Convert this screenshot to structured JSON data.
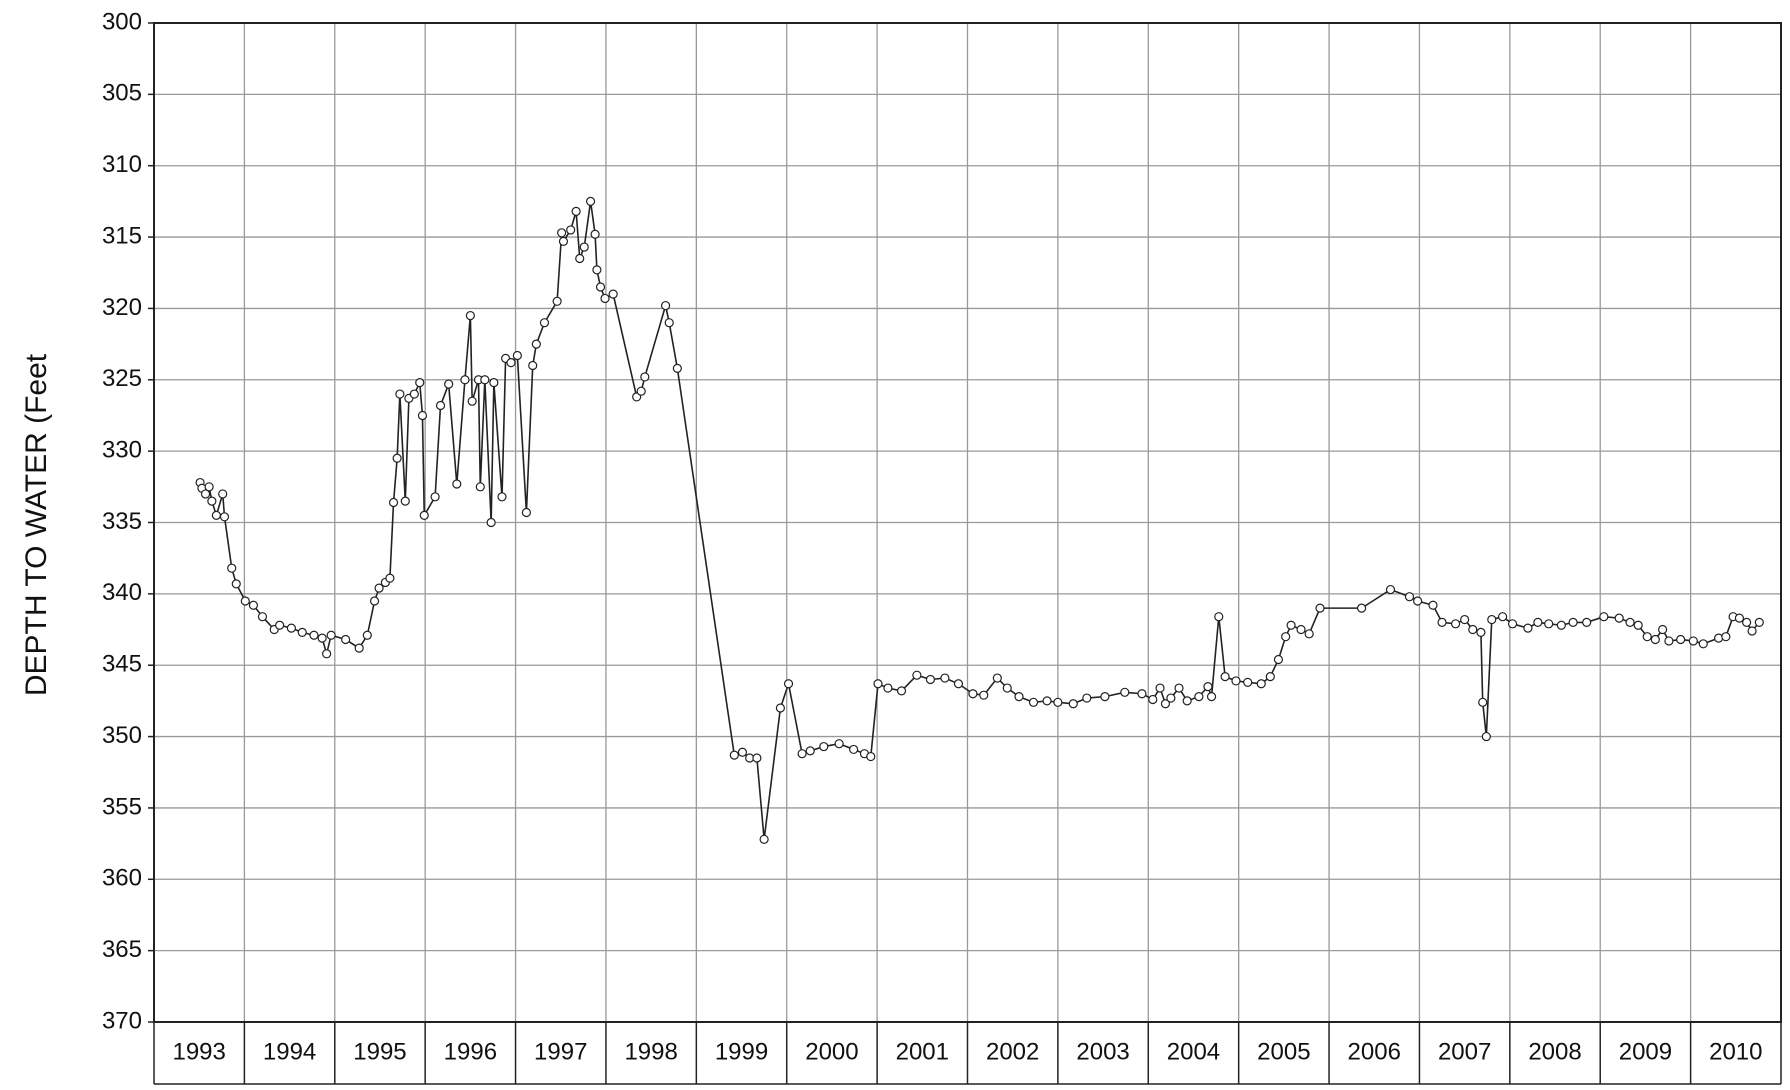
{
  "chart_data": {
    "type": "line",
    "ylabel": "DEPTH TO WATER (Feet",
    "categories": [
      "1993",
      "1994",
      "1995",
      "1996",
      "1997",
      "1998",
      "1999",
      "2000",
      "2001",
      "2002",
      "2003",
      "2004",
      "2005",
      "2006",
      "2007",
      "2008",
      "2009",
      "2010"
    ],
    "xlim": [
      1993,
      2011
    ],
    "ylim": [
      300,
      370
    ],
    "y_inverted": true,
    "yticks": [
      300,
      305,
      310,
      315,
      320,
      325,
      330,
      335,
      340,
      345,
      350,
      355,
      360,
      365,
      370
    ],
    "grid": true,
    "markers": true,
    "x": [
      1993.51,
      1993.53,
      1993.57,
      1993.61,
      1993.64,
      1993.69,
      1993.76,
      1993.78,
      1993.86,
      1993.91,
      1994.01,
      1994.1,
      1994.2,
      1994.33,
      1994.39,
      1994.52,
      1994.64,
      1994.77,
      1994.86,
      1994.91,
      1994.96,
      1995.12,
      1995.27,
      1995.36,
      1995.44,
      1995.49,
      1995.56,
      1995.61,
      1995.65,
      1995.69,
      1995.72,
      1995.78,
      1995.82,
      1995.88,
      1995.94,
      1995.97,
      1995.99,
      1996.11,
      1996.17,
      1996.26,
      1996.35,
      1996.44,
      1996.5,
      1996.52,
      1996.59,
      1996.61,
      1996.66,
      1996.73,
      1996.76,
      1996.85,
      1996.89,
      1996.95,
      1997.02,
      1997.12,
      1997.19,
      1997.23,
      1997.32,
      1997.46,
      1997.51,
      1997.53,
      1997.61,
      1997.67,
      1997.71,
      1997.76,
      1997.83,
      1997.88,
      1997.9,
      1997.94,
      1997.99,
      1998.08,
      1998.34,
      1998.39,
      1998.43,
      1998.66,
      1998.7,
      1998.79,
      1999.42,
      1999.51,
      1999.59,
      1999.67,
      1999.75,
      1999.93,
      2000.02,
      2000.17,
      2000.26,
      2000.41,
      2000.58,
      2000.74,
      2000.86,
      2000.93,
      2001.01,
      2001.12,
      2001.27,
      2001.44,
      2001.59,
      2001.75,
      2001.9,
      2002.06,
      2002.18,
      2002.33,
      2002.44,
      2002.57,
      2002.73,
      2002.88,
      2003.0,
      2003.17,
      2003.32,
      2003.52,
      2003.74,
      2003.93,
      2004.05,
      2004.13,
      2004.19,
      2004.25,
      2004.34,
      2004.43,
      2004.56,
      2004.66,
      2004.7,
      2004.78,
      2004.85,
      2004.97,
      2005.1,
      2005.25,
      2005.35,
      2005.44,
      2005.52,
      2005.58,
      2005.69,
      2005.78,
      2005.9,
      2006.36,
      2006.68,
      2006.89,
      2006.98,
      2007.15,
      2007.25,
      2007.4,
      2007.5,
      2007.59,
      2007.68,
      2007.7,
      2007.74,
      2007.8,
      2007.92,
      2008.03,
      2008.2,
      2008.31,
      2008.43,
      2008.57,
      2008.7,
      2008.85,
      2009.04,
      2009.21,
      2009.33,
      2009.42,
      2009.52,
      2009.61,
      2009.69,
      2009.76,
      2009.89,
      2010.03,
      2010.14,
      2010.31,
      2010.39,
      2010.47,
      2010.54,
      2010.62,
      2010.68,
      2010.76
    ],
    "series": [
      {
        "color": "#222222",
        "values": [
          332.2,
          332.6,
          333,
          332.5,
          333.5,
          334.5,
          333,
          334.6,
          338.2,
          339.3,
          340.5,
          340.8,
          341.6,
          342.5,
          342.2,
          342.4,
          342.7,
          342.9,
          343.1,
          344.2,
          342.9,
          343.2,
          343.8,
          342.9,
          340.5,
          339.6,
          339.2,
          338.9,
          333.6,
          330.5,
          326,
          333.5,
          326.3,
          326,
          325.2,
          327.5,
          334.5,
          333.2,
          326.8,
          325.3,
          332.3,
          325,
          320.5,
          326.5,
          325,
          332.5,
          325,
          335,
          325.2,
          333.2,
          323.5,
          323.8,
          323.3,
          334.3,
          324,
          322.5,
          321,
          319.5,
          314.7,
          315.3,
          314.5,
          313.2,
          316.5,
          315.7,
          312.5,
          314.8,
          317.3,
          318.5,
          319.3,
          319,
          326.2,
          325.8,
          324.8,
          319.8,
          321,
          324.2,
          351.3,
          351.1,
          351.5,
          351.5,
          357.2,
          348,
          346.3,
          351.2,
          351,
          350.7,
          350.5,
          350.9,
          351.2,
          351.4,
          346.3,
          346.6,
          346.8,
          345.7,
          346,
          345.9,
          346.3,
          347,
          347.1,
          345.9,
          346.6,
          347.2,
          347.6,
          347.5,
          347.6,
          347.7,
          347.3,
          347.2,
          346.9,
          347,
          347.4,
          346.6,
          347.7,
          347.3,
          346.6,
          347.5,
          347.2,
          346.5,
          347.2,
          341.6,
          345.8,
          346.1,
          346.2,
          346.3,
          345.8,
          344.6,
          343,
          342.2,
          342.5,
          342.8,
          341,
          341,
          339.7,
          340.2,
          340.5,
          340.8,
          342,
          342.1,
          341.8,
          342.5,
          342.7,
          347.6,
          350,
          341.8,
          341.6,
          342.1,
          342.4,
          342,
          342.1,
          342.2,
          342,
          342,
          341.6,
          341.7,
          342,
          342.2,
          343,
          343.2,
          342.5,
          343.3,
          343.2,
          343.3,
          343.5,
          343.1,
          343,
          341.6,
          341.7,
          342,
          342.6,
          342
        ]
      }
    ]
  }
}
